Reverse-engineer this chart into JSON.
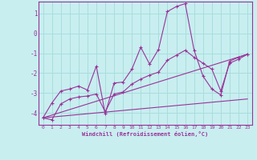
{
  "xlabel": "Windchill (Refroidissement éolien,°C)",
  "background_color": "#c8eef0",
  "line_color": "#993399",
  "grid_color": "#aadddd",
  "x_ticks": [
    0,
    1,
    2,
    3,
    4,
    5,
    6,
    7,
    8,
    9,
    10,
    11,
    12,
    13,
    14,
    15,
    16,
    17,
    18,
    19,
    20,
    21,
    22,
    23
  ],
  "y_ticks": [
    -4,
    -3,
    -2,
    -1,
    0,
    1
  ],
  "ylim": [
    -4.6,
    1.6
  ],
  "xlim": [
    -0.5,
    23.5
  ],
  "line1_x": [
    0,
    1,
    2,
    3,
    4,
    5,
    6,
    7,
    8,
    9,
    10,
    11,
    12,
    13,
    14,
    15,
    16,
    17,
    18,
    19,
    20,
    21,
    22,
    23
  ],
  "line1_y": [
    -4.25,
    -3.5,
    -2.9,
    -2.8,
    -2.65,
    -2.85,
    -1.65,
    -4.05,
    -2.5,
    -2.45,
    -1.8,
    -0.7,
    -1.55,
    -0.8,
    1.1,
    1.35,
    1.5,
    -0.85,
    -2.15,
    -2.8,
    -3.1,
    -1.4,
    -1.2,
    -1.05
  ],
  "line2_x": [
    0,
    1,
    2,
    3,
    4,
    5,
    6,
    7,
    8,
    9,
    10,
    11,
    12,
    13,
    14,
    15,
    16,
    17,
    18,
    19,
    20,
    21,
    22,
    23
  ],
  "line2_y": [
    -4.25,
    -4.35,
    -3.55,
    -3.3,
    -3.2,
    -3.15,
    -3.05,
    -3.95,
    -3.05,
    -2.95,
    -2.55,
    -2.3,
    -2.1,
    -1.95,
    -1.35,
    -1.1,
    -0.85,
    -1.2,
    -1.5,
    -1.8,
    -2.9,
    -1.5,
    -1.3,
    -1.05
  ],
  "line3_x": [
    0,
    23
  ],
  "line3_y": [
    -4.25,
    -1.05
  ],
  "line4_x": [
    0,
    23
  ],
  "line4_y": [
    -4.25,
    -3.3
  ]
}
